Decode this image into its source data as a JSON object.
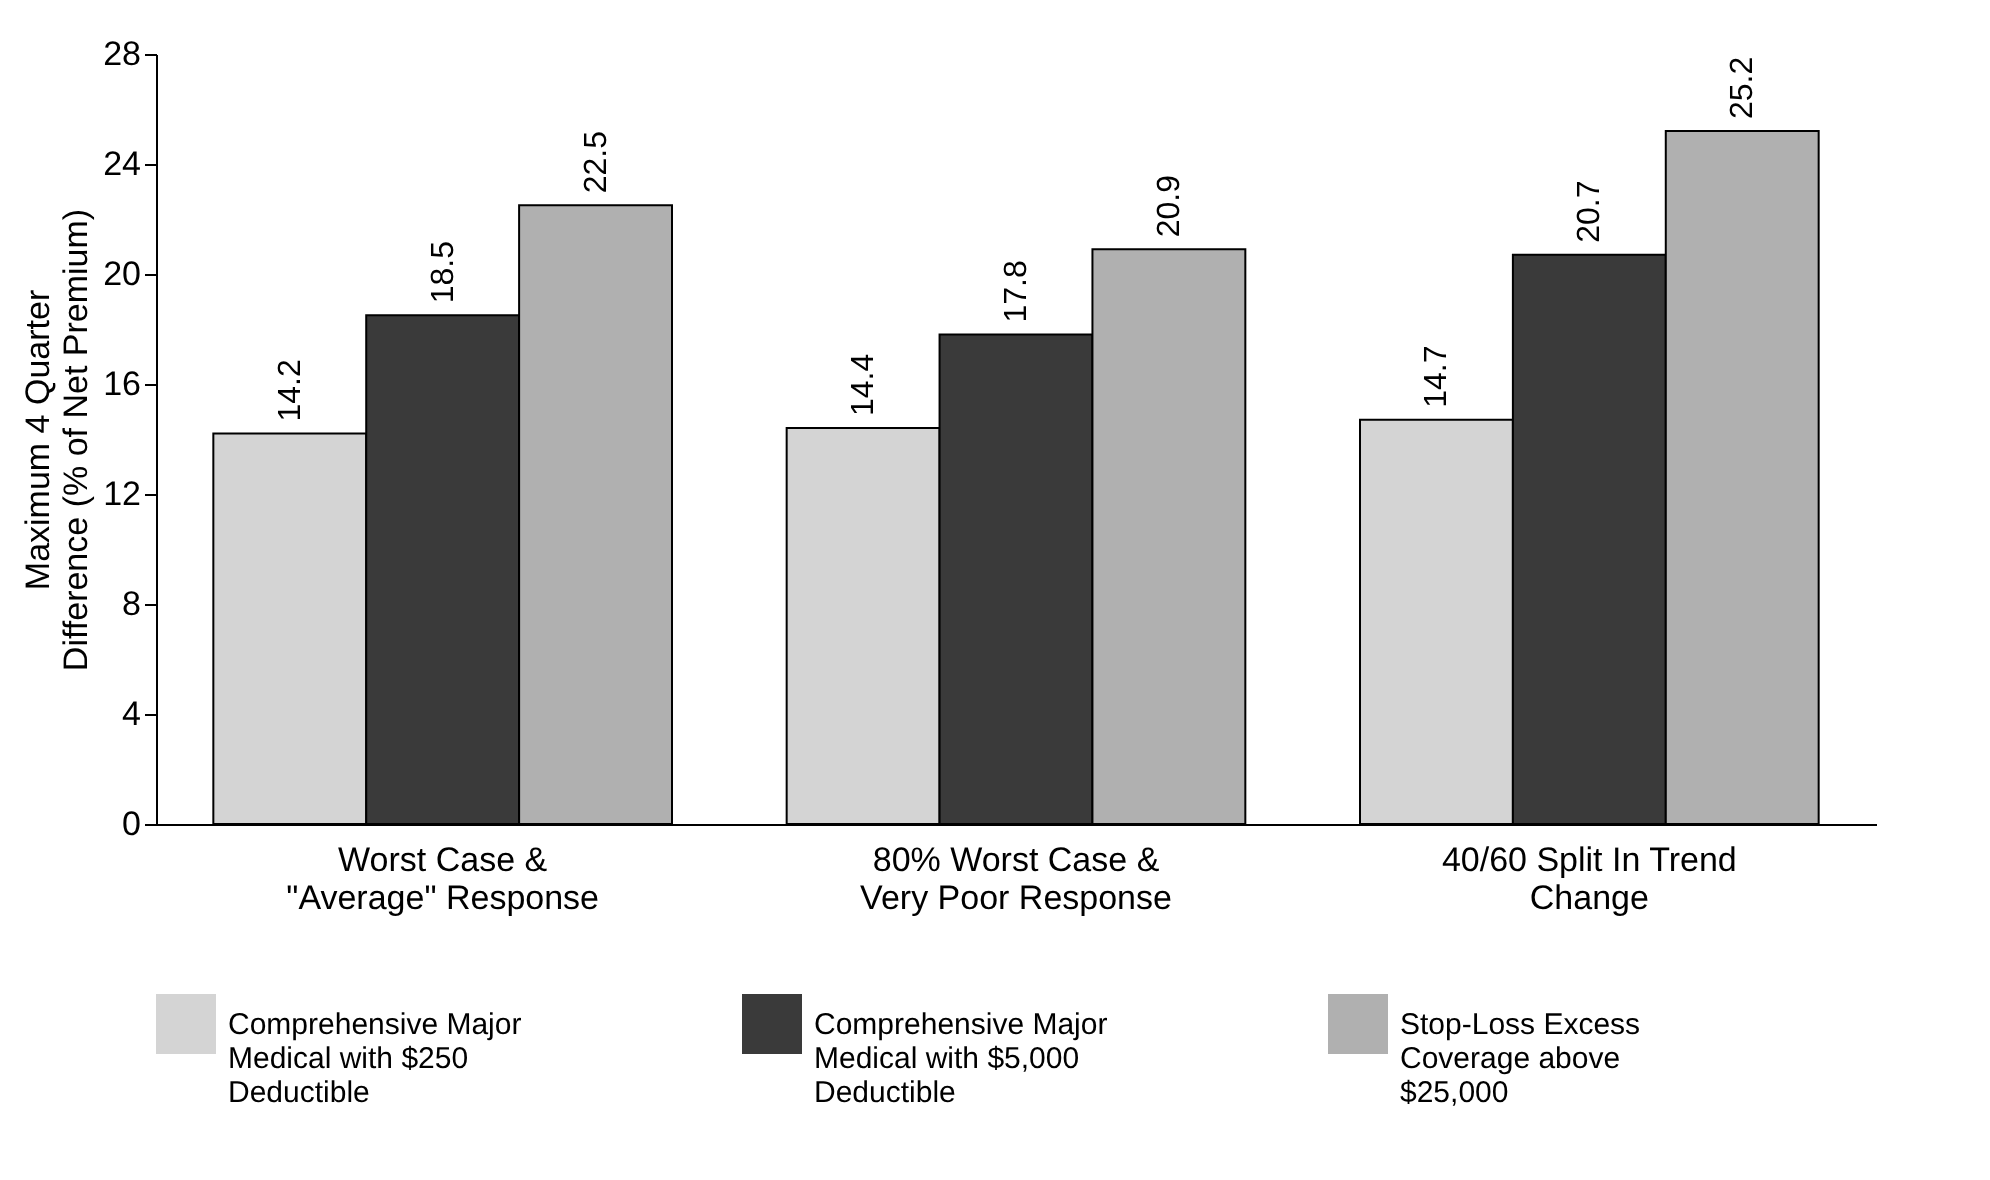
{
  "chart_data": {
    "type": "bar",
    "ylabel": "Maximum 4 Quarter\nDifference (% of Net Premium)",
    "categories": [
      "Worst Case &\n\"Average\" Response",
      "80% Worst Case &\nVery Poor Response",
      "40/60 Split In Trend\nChange"
    ],
    "series": [
      {
        "name": "Comprehensive Major\nMedical with $250\nDeductible",
        "color": "#d4d4d4",
        "values": [
          14.2,
          14.4,
          14.7
        ]
      },
      {
        "name": "Comprehensive Major\nMedical with $5,000\nDeductible",
        "color": "#3a3a3a",
        "values": [
          18.5,
          17.8,
          20.7
        ]
      },
      {
        "name": "Stop-Loss Excess\nCoverage above\n$25,000",
        "color": "#b0b0b0",
        "values": [
          22.5,
          20.9,
          25.2
        ]
      }
    ],
    "ylim": [
      0,
      28
    ],
    "yticks": [
      0,
      4,
      8,
      12,
      16,
      20,
      24,
      28
    ],
    "data_labels": true,
    "grid": false,
    "legend": "bottom"
  }
}
